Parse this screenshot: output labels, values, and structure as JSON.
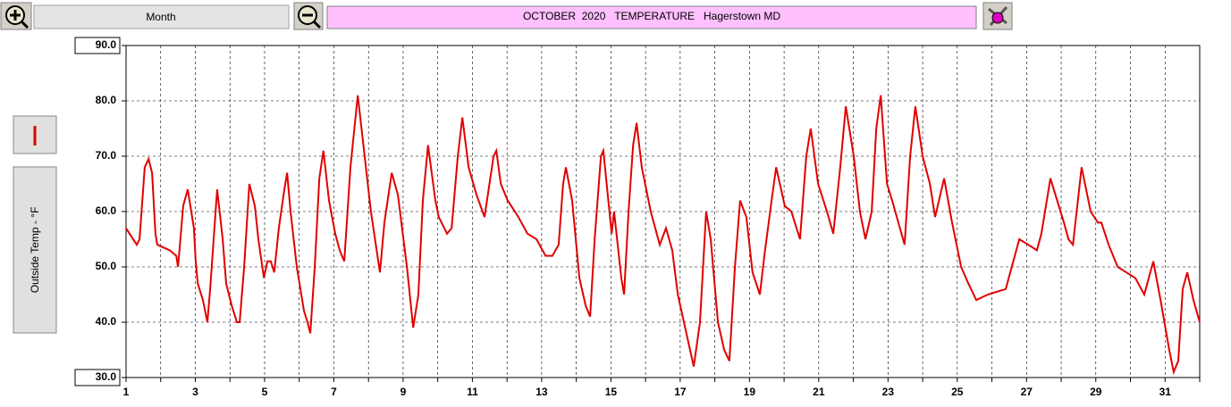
{
  "ui": {
    "range_button": "Month"
  },
  "chart_data": {
    "type": "line",
    "title": "OCTOBER  2020   TEMPERATURE   Hagerstown MD",
    "x": [
      1.0,
      1.1,
      1.31,
      1.39,
      1.54,
      1.65,
      1.75,
      1.85,
      1.9,
      2.26,
      2.45,
      2.5,
      2.57,
      2.65,
      2.78,
      2.96,
      3.01,
      3.07,
      3.22,
      3.35,
      3.43,
      3.53,
      3.63,
      3.79,
      3.89,
      4.05,
      4.2,
      4.28,
      4.41,
      4.56,
      4.72,
      4.82,
      4.98,
      5.08,
      5.18,
      5.28,
      5.41,
      5.57,
      5.65,
      5.75,
      5.93,
      6.14,
      6.24,
      6.32,
      6.45,
      6.58,
      6.7,
      6.86,
      7.04,
      7.17,
      7.3,
      7.48,
      7.69,
      7.89,
      8.07,
      8.33,
      8.46,
      8.67,
      8.85,
      9.11,
      9.29,
      9.44,
      9.57,
      9.72,
      9.93,
      10.03,
      10.27,
      10.4,
      10.58,
      10.71,
      10.89,
      11.12,
      11.35,
      11.61,
      11.69,
      11.82,
      12.02,
      12.33,
      12.59,
      12.85,
      13.11,
      13.31,
      13.49,
      13.62,
      13.7,
      13.88,
      14.09,
      14.27,
      14.4,
      14.53,
      14.71,
      14.78,
      15.02,
      15.09,
      15.3,
      15.38,
      15.51,
      15.64,
      15.74,
      15.89,
      16.15,
      16.41,
      16.59,
      16.77,
      16.93,
      17.18,
      17.39,
      17.57,
      17.75,
      17.88,
      18.09,
      18.27,
      18.42,
      18.58,
      18.73,
      18.91,
      19.09,
      19.3,
      19.43,
      19.64,
      19.77,
      20.02,
      20.21,
      20.46,
      20.64,
      20.77,
      20.98,
      21.24,
      21.42,
      21.62,
      21.78,
      22.01,
      22.19,
      22.35,
      22.53,
      22.66,
      22.79,
      22.97,
      23.12,
      23.3,
      23.48,
      23.64,
      23.79,
      24.0,
      24.21,
      24.36,
      24.62,
      24.85,
      25.11,
      25.32,
      25.55,
      25.88,
      26.4,
      26.53,
      26.79,
      27.05,
      27.3,
      27.43,
      27.69,
      28.08,
      28.21,
      28.34,
      28.59,
      28.85,
      29.06,
      29.16,
      29.37,
      29.63,
      29.88,
      30.14,
      30.4,
      30.66,
      30.87,
      31.12,
      31.25,
      31.38,
      31.51,
      31.64,
      31.82,
      32.0
    ],
    "series": [
      {
        "name": "Outside Temp - °F",
        "color": "#e00000",
        "values": [
          57,
          56,
          54,
          55,
          68,
          69.5,
          67,
          56,
          54,
          53,
          52,
          50,
          55,
          61,
          64,
          57,
          51,
          47,
          44,
          40,
          46,
          55,
          64,
          55,
          47,
          43,
          40,
          40,
          50,
          65,
          61,
          55,
          48,
          51,
          51,
          49,
          57,
          64,
          67,
          60,
          50,
          42,
          40,
          38,
          50,
          66,
          71,
          62,
          56,
          53,
          51,
          68,
          81,
          70,
          60,
          49,
          58,
          67,
          63,
          50,
          39,
          45,
          62,
          72,
          62,
          59,
          56,
          57,
          70,
          77,
          68,
          63,
          59,
          70,
          71,
          65,
          62,
          59,
          56,
          55,
          52,
          52,
          54,
          65,
          68,
          62,
          48,
          43,
          41,
          55,
          70,
          71,
          56,
          60,
          48,
          45,
          60,
          72,
          76,
          68,
          60,
          54,
          57,
          53,
          45,
          38,
          32,
          40,
          60,
          55,
          40,
          35,
          33,
          50,
          62,
          59,
          49,
          45,
          52,
          62,
          68,
          61,
          60,
          55,
          70,
          75,
          65,
          60,
          56,
          68,
          79,
          70,
          60,
          55,
          60,
          75,
          81,
          65,
          62,
          58,
          54,
          70,
          79,
          70,
          65,
          59,
          66,
          58,
          50,
          47,
          44,
          45,
          46,
          49,
          55,
          54,
          53,
          56,
          66,
          58,
          55,
          54,
          68,
          60,
          58,
          58,
          54,
          50,
          49,
          48,
          45,
          51,
          44,
          35,
          31,
          33,
          46,
          49,
          44,
          40
        ]
      }
    ],
    "xlim": [
      1,
      32
    ],
    "xticks": [
      1,
      3,
      5,
      7,
      9,
      11,
      13,
      15,
      17,
      19,
      21,
      23,
      25,
      27,
      29,
      31
    ],
    "xminorticks": [
      2,
      4,
      6,
      8,
      10,
      12,
      14,
      16,
      18,
      20,
      22,
      24,
      26,
      28,
      30,
      32
    ],
    "ylim": [
      30,
      90
    ],
    "yticks": [
      {
        "value": 30,
        "label": "30.0"
      },
      {
        "value": 40,
        "label": "40.0"
      },
      {
        "value": 50,
        "label": "50.0"
      },
      {
        "value": 60,
        "label": "60.0"
      },
      {
        "value": 70,
        "label": "70.0"
      },
      {
        "value": 80,
        "label": "80.0"
      },
      {
        "value": 90,
        "label": "90.0"
      }
    ],
    "grid": true
  }
}
